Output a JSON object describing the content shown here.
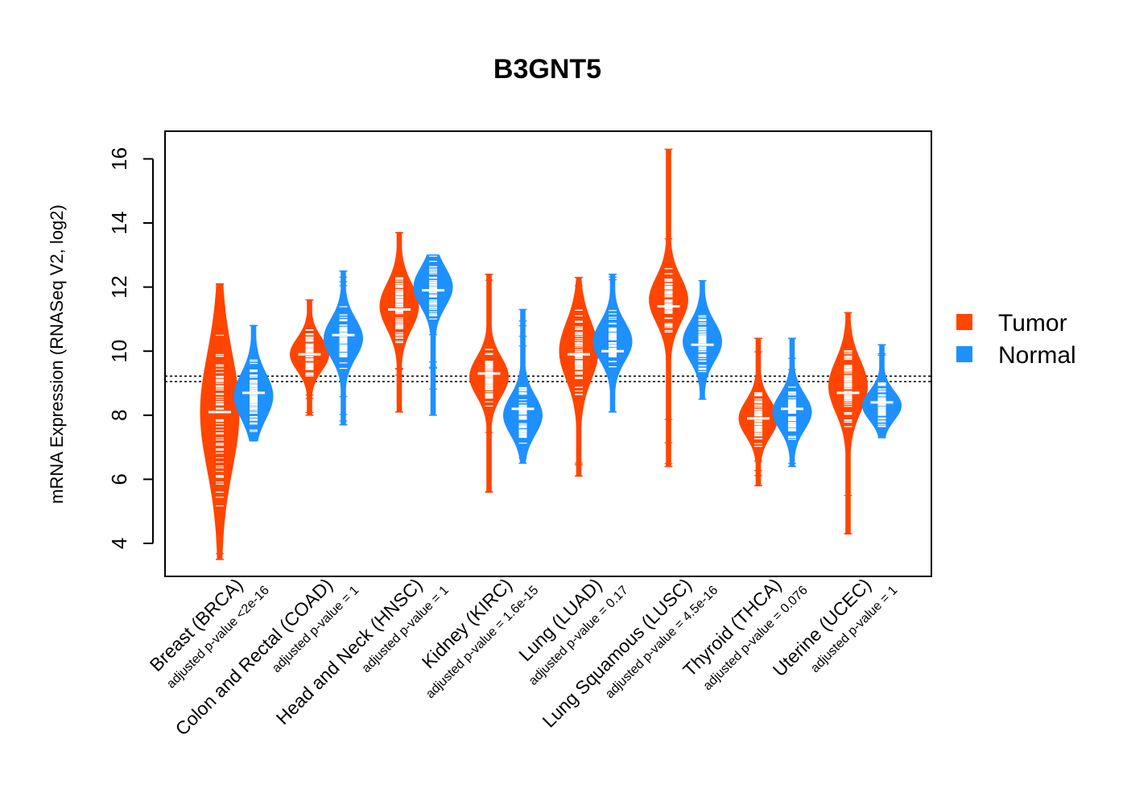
{
  "chart_data": {
    "type": "beanplot",
    "title": "B3GNT5",
    "ylabel": "mRNA Expression (RNASeq V2, log2)",
    "ylim": [
      3.0,
      16.8
    ],
    "yticks": [
      4,
      6,
      8,
      10,
      12,
      14,
      16
    ],
    "reference_lines": [
      9.05,
      9.22
    ],
    "legend": [
      {
        "label": "Tumor",
        "color": "#FF4500"
      },
      {
        "label": "Normal",
        "color": "#1E90FF"
      }
    ],
    "categories": [
      {
        "name": "Breast (BRCA)",
        "pvalue": "adjusted p-value <2e-16",
        "tumor": {
          "median": 8.1,
          "min": 3.5,
          "max": 12.1,
          "mode": 8.1,
          "spread": 1.8
        },
        "normal": {
          "median": 8.7,
          "min": 7.2,
          "max": 10.8,
          "mode": 8.6,
          "spread": 0.7
        }
      },
      {
        "name": "Colon and Rectal (COAD)",
        "pvalue": "adjusted p-value = 1",
        "tumor": {
          "median": 9.9,
          "min": 8.0,
          "max": 11.6,
          "mode": 9.9,
          "spread": 0.5
        },
        "normal": {
          "median": 10.5,
          "min": 7.7,
          "max": 12.5,
          "mode": 10.4,
          "spread": 0.6
        }
      },
      {
        "name": "Head and Neck (HNSC)",
        "pvalue": "adjusted p-value = 1",
        "tumor": {
          "median": 11.3,
          "min": 8.1,
          "max": 13.7,
          "mode": 11.4,
          "spread": 0.7
        },
        "normal": {
          "median": 11.9,
          "min": 8.0,
          "max": 13.0,
          "mode": 12.0,
          "spread": 0.6
        }
      },
      {
        "name": "Kidney (KIRC)",
        "pvalue": "adjusted p-value = 1.6e-15",
        "tumor": {
          "median": 9.3,
          "min": 5.6,
          "max": 12.4,
          "mode": 9.2,
          "spread": 0.6
        },
        "normal": {
          "median": 8.2,
          "min": 6.5,
          "max": 11.3,
          "mode": 8.0,
          "spread": 0.6
        }
      },
      {
        "name": "Lung (LUAD)",
        "pvalue": "adjusted p-value = 0.17",
        "tumor": {
          "median": 9.9,
          "min": 6.1,
          "max": 12.3,
          "mode": 10.0,
          "spread": 0.9
        },
        "normal": {
          "median": 10.0,
          "min": 8.1,
          "max": 12.4,
          "mode": 10.3,
          "spread": 0.6
        }
      },
      {
        "name": "Lung Squamous (LUSC)",
        "pvalue": "adjusted p-value = 4.5e-16",
        "tumor": {
          "median": 11.4,
          "min": 6.4,
          "max": 16.3,
          "mode": 11.6,
          "spread": 0.7
        },
        "normal": {
          "median": 10.2,
          "min": 8.5,
          "max": 12.2,
          "mode": 10.3,
          "spread": 0.6
        }
      },
      {
        "name": "Thyroid (THCA)",
        "pvalue": "adjusted p-value = 0.076",
        "tumor": {
          "median": 7.9,
          "min": 5.8,
          "max": 10.4,
          "mode": 7.9,
          "spread": 0.55
        },
        "normal": {
          "median": 8.2,
          "min": 6.4,
          "max": 10.4,
          "mode": 8.1,
          "spread": 0.55
        }
      },
      {
        "name": "Uterine (UCEC)",
        "pvalue": "adjusted p-value = 1",
        "tumor": {
          "median": 8.7,
          "min": 4.3,
          "max": 11.2,
          "mode": 8.9,
          "spread": 0.8
        },
        "normal": {
          "median": 8.4,
          "min": 7.3,
          "max": 10.2,
          "mode": 8.3,
          "spread": 0.45
        }
      }
    ]
  }
}
